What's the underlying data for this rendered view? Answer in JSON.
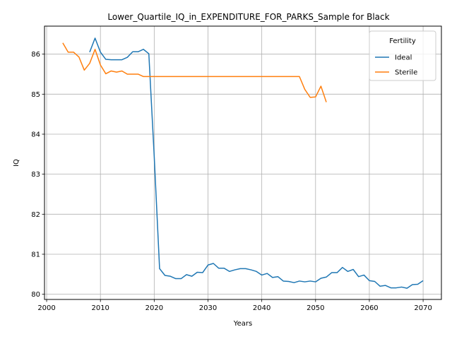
{
  "chart_data": {
    "type": "line",
    "title": "Lower_Quartile_IQ_in_EXPENDITURE_FOR_PARKS_Sample for Black",
    "xlabel": "Years",
    "ylabel": "IQ",
    "xlim": [
      1999.6,
      2073.4
    ],
    "ylim": [
      79.87,
      86.7
    ],
    "xticks": [
      2000,
      2010,
      2020,
      2030,
      2040,
      2050,
      2060,
      2070
    ],
    "yticks": [
      80,
      81,
      82,
      83,
      84,
      85,
      86
    ],
    "grid": true,
    "legend": {
      "title": "Fertility",
      "placement": "top-right"
    },
    "series": [
      {
        "name": "Ideal",
        "color": "#1f77b4",
        "x": [
          2008,
          2009,
          2010,
          2011,
          2012,
          2013,
          2014,
          2015,
          2016,
          2017,
          2018,
          2019,
          2020,
          2021,
          2022,
          2023,
          2024,
          2025,
          2026,
          2027,
          2028,
          2029,
          2030,
          2031,
          2032,
          2033,
          2034,
          2035,
          2036,
          2037,
          2038,
          2039,
          2040,
          2041,
          2042,
          2043,
          2044,
          2045,
          2046,
          2047,
          2048,
          2049,
          2050,
          2051,
          2052,
          2053,
          2054,
          2055,
          2056,
          2057,
          2058,
          2059,
          2060,
          2061,
          2062,
          2063,
          2064,
          2065,
          2066,
          2067,
          2068,
          2069,
          2070
        ],
        "y": [
          86.05,
          86.4,
          86.05,
          85.87,
          85.86,
          85.86,
          85.86,
          85.92,
          86.06,
          86.06,
          86.12,
          86.01,
          83.45,
          80.64,
          80.47,
          80.45,
          80.39,
          80.39,
          80.49,
          80.45,
          80.55,
          80.54,
          80.73,
          80.77,
          80.65,
          80.65,
          80.57,
          80.61,
          80.64,
          80.64,
          80.61,
          80.57,
          80.48,
          80.52,
          80.42,
          80.44,
          80.33,
          80.32,
          80.29,
          80.33,
          80.31,
          80.33,
          80.31,
          80.4,
          80.43,
          80.54,
          80.54,
          80.67,
          80.57,
          80.62,
          80.44,
          80.48,
          80.34,
          80.32,
          80.2,
          80.22,
          80.16,
          80.16,
          80.18,
          80.15,
          80.24,
          80.25,
          80.34
        ]
      },
      {
        "name": "Sterile",
        "color": "#ff7f0e",
        "x": [
          2003,
          2004,
          2005,
          2006,
          2007,
          2008,
          2009,
          2010,
          2011,
          2012,
          2013,
          2014,
          2015,
          2016,
          2017,
          2018,
          2019,
          2020,
          2025,
          2030,
          2035,
          2040,
          2045,
          2046,
          2047,
          2048,
          2049,
          2050,
          2051,
          2052
        ],
        "y": [
          86.28,
          86.05,
          86.05,
          85.93,
          85.6,
          85.77,
          86.12,
          85.73,
          85.51,
          85.58,
          85.55,
          85.58,
          85.5,
          85.5,
          85.5,
          85.44,
          85.44,
          85.44,
          85.44,
          85.44,
          85.44,
          85.44,
          85.44,
          85.44,
          85.44,
          85.12,
          84.92,
          84.93,
          85.2,
          84.8
        ]
      }
    ]
  }
}
